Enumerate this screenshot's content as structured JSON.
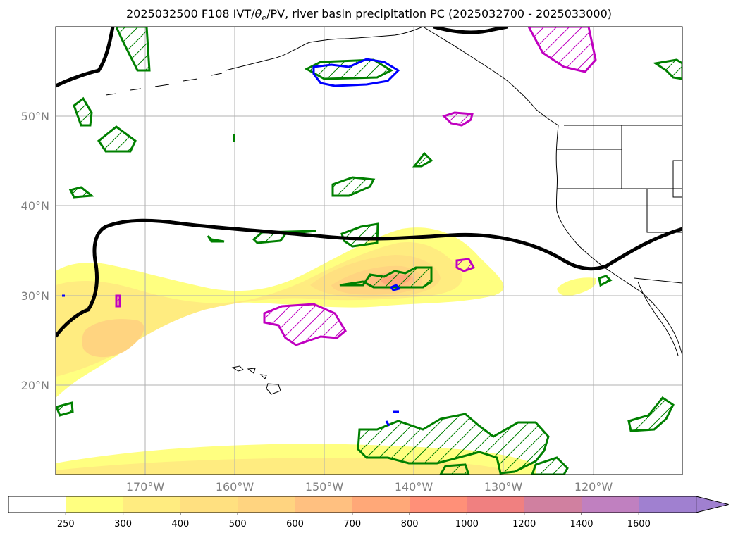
{
  "title": {
    "prefix": "2025032500 F108 IVT/",
    "theta": "θ",
    "theta_sub": "e",
    "suffix": "/PV, river basin precipitation PC (2025032700 - 2025033000)"
  },
  "axes": {
    "lat_labels": [
      "20°N",
      "30°N",
      "40°N",
      "50°N"
    ],
    "lon_labels": [
      "170°W",
      "160°W",
      "150°W",
      "140°W",
      "130°W",
      "120°W"
    ]
  },
  "colorbar": {
    "labels": [
      "250",
      "300",
      "400",
      "500",
      "600",
      "700",
      "800",
      "1000",
      "1200",
      "1400",
      "1600"
    ],
    "colors": [
      "#ffffff",
      "#ffff80",
      "#ffec80",
      "#ffe080",
      "#ffd480",
      "#ffc080",
      "#ffa878",
      "#ff9078",
      "#f08080",
      "#d080a0",
      "#c080c0",
      "#a080d0"
    ]
  },
  "contour_colors": {
    "pv": "#000000",
    "precip_green": "#008000",
    "precip_blue": "#0000ff",
    "precip_magenta": "#c000c0"
  }
}
